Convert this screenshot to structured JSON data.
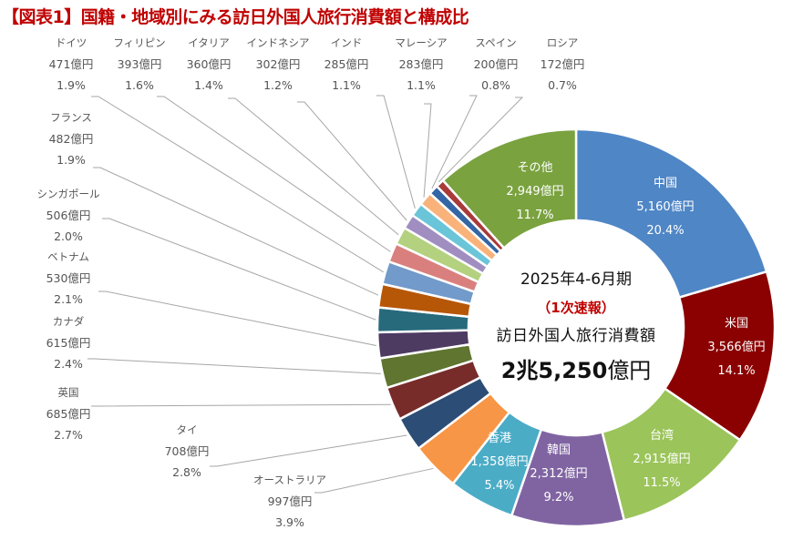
{
  "title": "【図表1】国籍・地域別にみる訪日外国人旅行消費額と構成比",
  "center": {
    "period": "2025年4-6月期",
    "note": "（1次速報）",
    "label": "訪日外国人旅行消費額",
    "total_bold": "2兆5,250",
    "total_unit": "億円"
  },
  "chart_data": {
    "type": "pie",
    "variant": "donut",
    "title": "国籍・地域別にみる訪日外国人旅行消費額と構成比",
    "unit": "億円",
    "total": 25250,
    "start": "12 o'clock, clockwise",
    "slices": [
      {
        "name": "中国",
        "value": 5160,
        "value_label": "5,160億円",
        "percent": 20.4,
        "percent_label": "20.4%",
        "color": "#4f86c6",
        "label_pos": "inside"
      },
      {
        "name": "米国",
        "value": 3566,
        "value_label": "3,566億円",
        "percent": 14.1,
        "percent_label": "14.1%",
        "color": "#8b0000",
        "label_pos": "inside"
      },
      {
        "name": "台湾",
        "value": 2915,
        "value_label": "2,915億円",
        "percent": 11.5,
        "percent_label": "11.5%",
        "color": "#9bc45a",
        "label_pos": "inside"
      },
      {
        "name": "韓国",
        "value": 2312,
        "value_label": "2,312億円",
        "percent": 9.2,
        "percent_label": "9.2%",
        "color": "#8064a2",
        "label_pos": "inside"
      },
      {
        "name": "香港",
        "value": 1358,
        "value_label": "1,358億円",
        "percent": 5.4,
        "percent_label": "5.4%",
        "color": "#4bacc6",
        "label_pos": "inside"
      },
      {
        "name": "オーストラリア",
        "value": 997,
        "value_label": "997億円",
        "percent": 3.9,
        "percent_label": "3.9%",
        "color": "#f79646",
        "label_pos": "outside"
      },
      {
        "name": "タイ",
        "value": 708,
        "value_label": "708億円",
        "percent": 2.8,
        "percent_label": "2.8%",
        "color": "#2c4d75",
        "label_pos": "outside"
      },
      {
        "name": "英国",
        "value": 685,
        "value_label": "685億円",
        "percent": 2.7,
        "percent_label": "2.7%",
        "color": "#772c2a",
        "label_pos": "outside"
      },
      {
        "name": "カナダ",
        "value": 615,
        "value_label": "615億円",
        "percent": 2.4,
        "percent_label": "2.4%",
        "color": "#5f7530",
        "label_pos": "outside"
      },
      {
        "name": "ベトナム",
        "value": 530,
        "value_label": "530億円",
        "percent": 2.1,
        "percent_label": "2.1%",
        "color": "#4d3b62",
        "label_pos": "outside"
      },
      {
        "name": "シンガポール",
        "value": 506,
        "value_label": "506億円",
        "percent": 2.0,
        "percent_label": "2.0%",
        "color": "#276a7c",
        "label_pos": "outside"
      },
      {
        "name": "フランス",
        "value": 482,
        "value_label": "482億円",
        "percent": 1.9,
        "percent_label": "1.9%",
        "color": "#b65708",
        "label_pos": "outside"
      },
      {
        "name": "ドイツ",
        "value": 471,
        "value_label": "471億円",
        "percent": 1.9,
        "percent_label": "1.9%",
        "color": "#729aca",
        "label_pos": "outside"
      },
      {
        "name": "フィリピン",
        "value": 393,
        "value_label": "393億円",
        "percent": 1.6,
        "percent_label": "1.6%",
        "color": "#d9807f",
        "label_pos": "outside"
      },
      {
        "name": "イタリア",
        "value": 360,
        "value_label": "360億円",
        "percent": 1.4,
        "percent_label": "1.4%",
        "color": "#b3d17f",
        "label_pos": "outside"
      },
      {
        "name": "インドネシア",
        "value": 302,
        "value_label": "302億円",
        "percent": 1.2,
        "percent_label": "1.2%",
        "color": "#a08ec1",
        "label_pos": "outside"
      },
      {
        "name": "インド",
        "value": 285,
        "value_label": "285億円",
        "percent": 1.1,
        "percent_label": "1.1%",
        "color": "#6bc5d8",
        "label_pos": "outside"
      },
      {
        "name": "マレーシア",
        "value": 283,
        "value_label": "283億円",
        "percent": 1.1,
        "percent_label": "1.1%",
        "color": "#f9b27a",
        "label_pos": "outside"
      },
      {
        "name": "スペイン",
        "value": 200,
        "value_label": "200億円",
        "percent": 0.8,
        "percent_label": "0.8%",
        "color": "#3465a4",
        "label_pos": "outside"
      },
      {
        "name": "ロシア",
        "value": 172,
        "value_label": "172億円",
        "percent": 0.7,
        "percent_label": "0.7%",
        "color": "#a83a3a",
        "label_pos": "outside"
      },
      {
        "name": "その他",
        "value": 2949,
        "value_label": "2,949億円",
        "percent": 11.7,
        "percent_label": "11.7%",
        "color": "#7aa23f",
        "label_pos": "inside"
      }
    ]
  }
}
